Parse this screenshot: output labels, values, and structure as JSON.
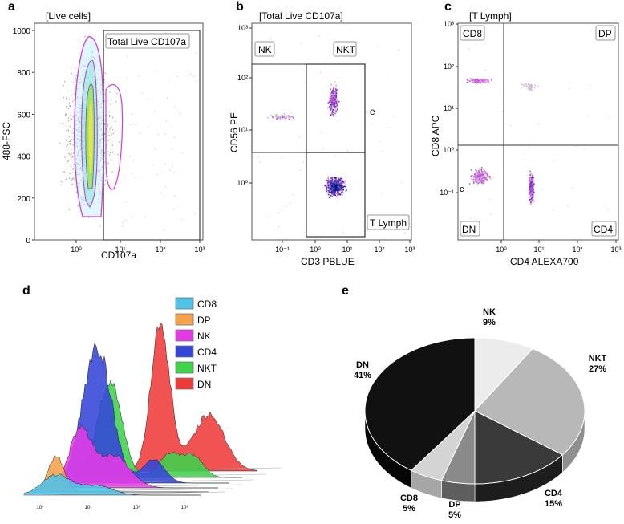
{
  "panel_labels": {
    "a": "a",
    "b": "b",
    "c": "c",
    "d": "d",
    "e": "e"
  },
  "colors": {
    "cd8": "#4fc3e8",
    "dp": "#f4a24b",
    "nk": "#e23be6",
    "cd4": "#3445d8",
    "nkt": "#3fd24b",
    "dn": "#ef3a3a",
    "density": "#c036d0",
    "gate": "#222222"
  },
  "chart_data": [
    {
      "id": "a",
      "type": "scatter",
      "gate_title": "[Live cells]",
      "gate_label": "Total Live CD107a",
      "xlabel": "CD107a",
      "ylabel": "488-FSC",
      "x_ticks": [
        "10⁰",
        "10¹",
        "10²",
        "10³"
      ],
      "y_ticks": [
        "0",
        "200",
        "400",
        "600",
        "800",
        "1000"
      ],
      "ylim": [
        0,
        1000
      ]
    },
    {
      "id": "b",
      "type": "scatter",
      "gate_title": "[Total Live CD107a]",
      "xlabel": "CD3 PBLUE",
      "ylabel": "CD56 PE",
      "gates": [
        "NK",
        "NKT",
        "T Lymph"
      ],
      "link_label": "e",
      "x_ticks": [
        "10⁻¹",
        "10⁰",
        "10¹",
        "10²",
        "10³"
      ],
      "y_ticks": [
        "10³",
        "10²",
        "10¹",
        "10⁰"
      ]
    },
    {
      "id": "c",
      "type": "scatter",
      "gate_title": "[T Lymph]",
      "xlabel": "CD4 ALEXA700",
      "ylabel": "CD8 APC",
      "quadrants": [
        "CD8",
        "DP",
        "DN",
        "CD4"
      ],
      "link_label": "c",
      "x_ticks": [
        "10⁰",
        "10¹",
        "10²",
        "10³"
      ],
      "y_ticks": [
        "10³",
        "10²",
        "10¹",
        "10⁰",
        "10⁻¹"
      ]
    },
    {
      "id": "d",
      "type": "area",
      "title": "",
      "legend": [
        "CD8",
        "DP",
        "NK",
        "CD4",
        "NKT",
        "DN"
      ],
      "x_ticks": [
        "10⁰",
        "10¹",
        "10²",
        "10³"
      ]
    },
    {
      "id": "e",
      "type": "pie",
      "categories": [
        "NK",
        "NKT",
        "CD4",
        "DP",
        "CD8",
        "DN"
      ],
      "values": [
        9,
        27,
        15,
        5,
        5,
        41
      ],
      "labels": [
        "9%",
        "27%",
        "15%",
        "5%",
        "5%",
        "41%"
      ]
    }
  ]
}
